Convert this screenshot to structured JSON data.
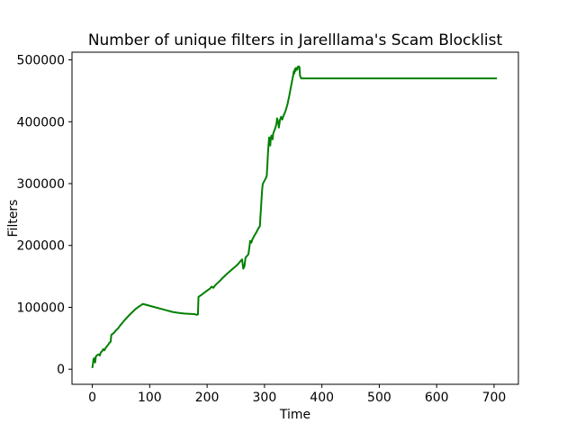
{
  "figure": {
    "background": "#ffffff"
  },
  "chart_data": {
    "type": "line",
    "title": "Number of unique filters in Jarelllama's Scam Blocklist",
    "xlabel": "Time",
    "ylabel": "Filters",
    "x_ticks": [
      0,
      100,
      200,
      300,
      400,
      500,
      600,
      700
    ],
    "y_ticks": [
      0,
      100000,
      200000,
      300000,
      400000,
      500000
    ],
    "xlim": [
      -35.4,
      742.4
    ],
    "ylim": [
      -24400,
      512400
    ],
    "grid": false,
    "legend": "none",
    "line_color": "#008000",
    "axis_color": "#000000",
    "series": [
      {
        "name": "unique_filters",
        "color": "#008000",
        "points": [
          [
            0,
            2000
          ],
          [
            1,
            8000
          ],
          [
            2,
            16000
          ],
          [
            3,
            17500
          ],
          [
            4,
            12000
          ],
          [
            5,
            11000
          ],
          [
            6,
            20000
          ],
          [
            8,
            22500
          ],
          [
            10,
            23500
          ],
          [
            12,
            24000
          ],
          [
            13,
            22000
          ],
          [
            15,
            27500
          ],
          [
            17,
            29000
          ],
          [
            19,
            32500
          ],
          [
            21,
            30500
          ],
          [
            23,
            34000
          ],
          [
            25,
            36500
          ],
          [
            28,
            40000
          ],
          [
            30,
            43000
          ],
          [
            32,
            44500
          ],
          [
            33,
            55000
          ],
          [
            35,
            57000
          ],
          [
            38,
            59000
          ],
          [
            40,
            61500
          ],
          [
            43,
            64500
          ],
          [
            45,
            66000
          ],
          [
            48,
            70000
          ],
          [
            52,
            74500
          ],
          [
            56,
            79000
          ],
          [
            60,
            83000
          ],
          [
            65,
            88000
          ],
          [
            70,
            92500
          ],
          [
            75,
            97000
          ],
          [
            80,
            100500
          ],
          [
            85,
            103500
          ],
          [
            88,
            105500
          ],
          [
            92,
            104500
          ],
          [
            100,
            102500
          ],
          [
            110,
            100000
          ],
          [
            120,
            97500
          ],
          [
            130,
            95000
          ],
          [
            140,
            92500
          ],
          [
            150,
            91000
          ],
          [
            160,
            90000
          ],
          [
            170,
            89500
          ],
          [
            178,
            89000
          ],
          [
            182,
            88000
          ],
          [
            184,
            88500
          ],
          [
            185,
            117000
          ],
          [
            190,
            120000
          ],
          [
            195,
            123500
          ],
          [
            200,
            127000
          ],
          [
            205,
            130500
          ],
          [
            208,
            133500
          ],
          [
            211,
            131500
          ],
          [
            214,
            135500
          ],
          [
            218,
            139000
          ],
          [
            222,
            142500
          ],
          [
            226,
            146500
          ],
          [
            230,
            150000
          ],
          [
            235,
            154500
          ],
          [
            240,
            158500
          ],
          [
            245,
            162500
          ],
          [
            250,
            166500
          ],
          [
            254,
            170000
          ],
          [
            258,
            174500
          ],
          [
            261,
            177500
          ],
          [
            263,
            162500
          ],
          [
            265,
            166000
          ],
          [
            267,
            180500
          ],
          [
            270,
            183500
          ],
          [
            272,
            186000
          ],
          [
            274,
            199000
          ],
          [
            275,
            207500
          ],
          [
            277,
            204500
          ],
          [
            279,
            210000
          ],
          [
            281,
            213500
          ],
          [
            283,
            217000
          ],
          [
            286,
            221500
          ],
          [
            289,
            227000
          ],
          [
            292,
            231500
          ],
          [
            293,
            248000
          ],
          [
            294,
            262000
          ],
          [
            295,
            277000
          ],
          [
            296,
            291000
          ],
          [
            297,
            299500
          ],
          [
            299,
            303000
          ],
          [
            301,
            306500
          ],
          [
            303,
            310000
          ],
          [
            304,
            313500
          ],
          [
            305,
            330000
          ],
          [
            306,
            348000
          ],
          [
            307,
            362000
          ],
          [
            308,
            374500
          ],
          [
            309,
            367000
          ],
          [
            310,
            361500
          ],
          [
            311,
            374000
          ],
          [
            312,
            377500
          ],
          [
            314,
            371500
          ],
          [
            315,
            380000
          ],
          [
            317,
            385500
          ],
          [
            319,
            390000
          ],
          [
            321,
            397500
          ],
          [
            322,
            405500
          ],
          [
            324,
            399000
          ],
          [
            325,
            390500
          ],
          [
            327,
            403000
          ],
          [
            329,
            408000
          ],
          [
            331,
            403500
          ],
          [
            333,
            409500
          ],
          [
            335,
            413500
          ],
          [
            337,
            418500
          ],
          [
            340,
            428000
          ],
          [
            343,
            441000
          ],
          [
            346,
            456000
          ],
          [
            348,
            465500
          ],
          [
            350,
            475000
          ],
          [
            351,
            481500
          ],
          [
            352,
            478000
          ],
          [
            353,
            485500
          ],
          [
            354,
            482000
          ],
          [
            355,
            487000
          ],
          [
            357,
            484000
          ],
          [
            358,
            488500
          ],
          [
            360,
            489500
          ],
          [
            361,
            488000
          ],
          [
            362,
            474000
          ],
          [
            364,
            470000
          ],
          [
            380,
            470000
          ],
          [
            450,
            470000
          ],
          [
            550,
            470000
          ],
          [
            650,
            470000
          ],
          [
            705,
            470000
          ]
        ]
      }
    ]
  }
}
